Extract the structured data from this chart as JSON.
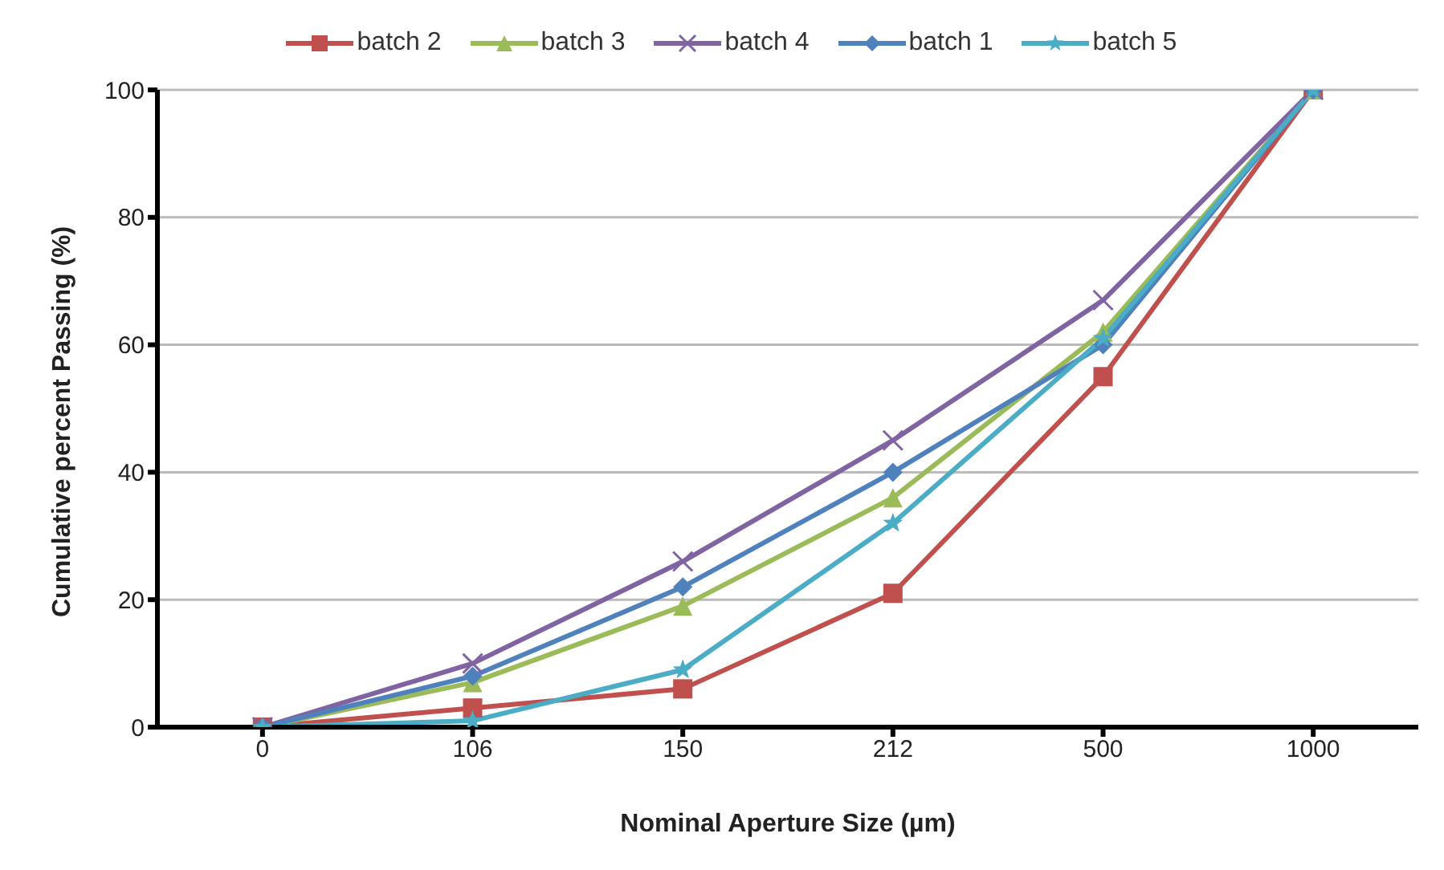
{
  "chart_data": {
    "type": "line",
    "xlabel": "Nominal Aperture Size (µm)",
    "ylabel": "Cumulative percent Passing (%)",
    "categories": [
      "0",
      "106",
      "150",
      "212",
      "500",
      "1000"
    ],
    "ylim": [
      0,
      100
    ],
    "yticks": [
      0,
      20,
      40,
      60,
      80,
      100
    ],
    "grid": "y",
    "legend": "top",
    "series": [
      {
        "name": "batch 2",
        "color": "#c0504d",
        "marker": "square",
        "values": [
          0,
          3,
          6,
          21,
          55,
          100
        ]
      },
      {
        "name": "batch 3",
        "color": "#9bbb59",
        "marker": "triangle",
        "values": [
          0,
          7,
          19,
          36,
          62,
          100
        ]
      },
      {
        "name": "batch 4",
        "color": "#8064a2",
        "marker": "cross",
        "values": [
          0,
          10,
          26,
          45,
          67,
          100
        ]
      },
      {
        "name": "batch 1",
        "color": "#4f81bd",
        "marker": "diamond",
        "values": [
          0,
          8,
          22,
          40,
          60,
          100
        ]
      },
      {
        "name": "batch 5",
        "color": "#4bacc6",
        "marker": "star",
        "values": [
          0,
          1,
          9,
          32,
          61,
          100
        ]
      }
    ]
  }
}
